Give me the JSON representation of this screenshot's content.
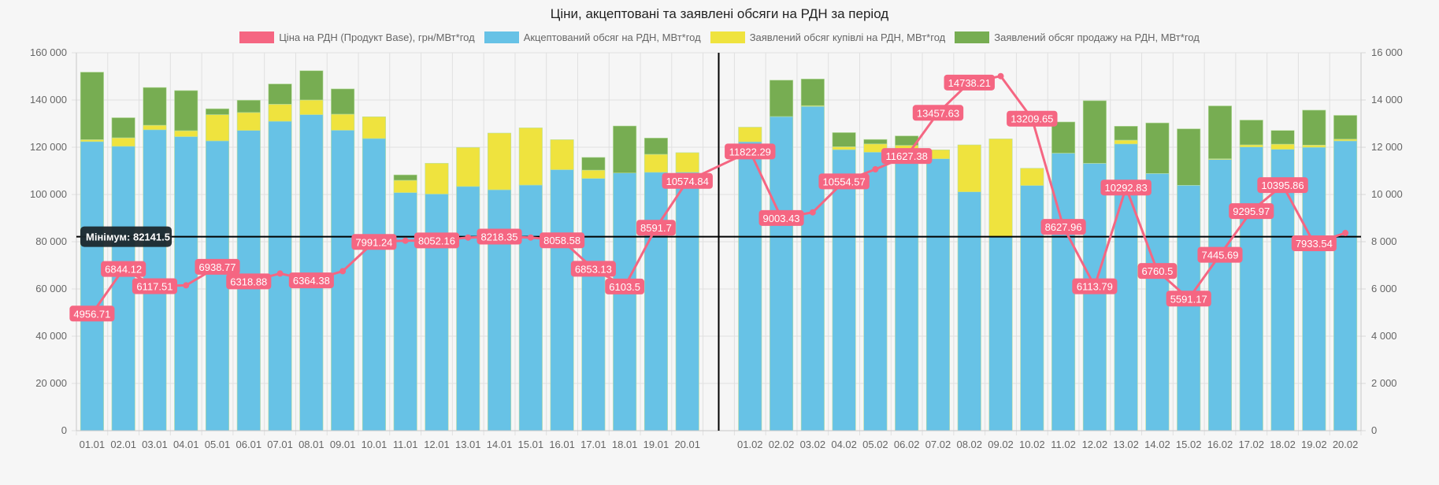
{
  "chart_data": {
    "type": "bar",
    "title": "Ціни, акцептовані та заявлені обсяги на РДН за період",
    "xlabel": "",
    "ylabel_left": "",
    "ylabel_right": "",
    "categories": [
      "01.01",
      "02.01",
      "03.01",
      "04.01",
      "05.01",
      "06.01",
      "07.01",
      "08.01",
      "09.01",
      "10.01",
      "11.01",
      "12.01",
      "13.01",
      "14.01",
      "15.01",
      "16.01",
      "17.01",
      "18.01",
      "19.01",
      "20.01",
      "",
      "01.02",
      "02.02",
      "03.02",
      "04.02",
      "05.02",
      "06.02",
      "07.02",
      "08.02",
      "09.02",
      "10.02",
      "11.02",
      "12.02",
      "13.02",
      "14.02",
      "15.02",
      "16.02",
      "17.02",
      "18.02",
      "19.02",
      "20.02"
    ],
    "y_left": {
      "min": 0,
      "max": 160000,
      "step": 20000,
      "ticks": [
        "0",
        "20 000",
        "40 000",
        "60 000",
        "80 000",
        "100 000",
        "120 000",
        "140 000",
        "160 000"
      ]
    },
    "y_right": {
      "min": 0,
      "max": 16000,
      "step": 2000,
      "ticks": [
        "0",
        "2 000",
        "4 000",
        "6 000",
        "8 000",
        "10 000",
        "12 000",
        "14 000",
        "16 000"
      ]
    },
    "grid": true,
    "legend_position": "top",
    "series": [
      {
        "name": "Ціна на РДН (Продукт Base), грн/МВт*год",
        "type": "line",
        "axis": "right",
        "color": "#f56682",
        "values": [
          4956.71,
          6844.12,
          6117.51,
          6153,
          6938.77,
          6318.88,
          6653,
          6364.38,
          6753,
          7991.24,
          8043,
          8052.16,
          8177,
          8218.35,
          8177,
          8058.58,
          6853.13,
          6103.5,
          8591.7,
          10574.84,
          null,
          11822.29,
          9003.43,
          9243,
          10554.57,
          11067,
          11627.38,
          13457.63,
          14738.21,
          15010,
          13209.65,
          8627.96,
          6113.79,
          10292.83,
          6760.5,
          5591.17,
          7445.69,
          9295.97,
          10395.86,
          7933.54,
          8370
        ],
        "labels": [
          "4956.71",
          "6844.12",
          "6117.51",
          "",
          "6938.77",
          "6318.88",
          "",
          "6364.38",
          "",
          "7991.24",
          "",
          "8052.16",
          "",
          "8218.35",
          "",
          "8058.58",
          "6853.13",
          "6103.5",
          "8591.7",
          "10574.84",
          "",
          "11822.29",
          "9003.43",
          "",
          "10554.57",
          "",
          "11627.38",
          "13457.63",
          "14738.21",
          "",
          "13209.65",
          "8627.96",
          "6113.79",
          "10292.83",
          "6760.5",
          "5591.17",
          "7445.69",
          "9295.97",
          "10395.86",
          "7933.54",
          ""
        ]
      },
      {
        "name": "Акцептований обсяг на РДН, МВт*год",
        "type": "bar",
        "stack": "volume",
        "axis": "left",
        "color": "#67c2e6",
        "values": [
          122400,
          120400,
          127400,
          124500,
          122700,
          127100,
          131000,
          133800,
          127200,
          123700,
          100800,
          100200,
          103400,
          102000,
          104000,
          110500,
          106800,
          109100,
          109400,
          109400,
          null,
          122300,
          133000,
          137300,
          119000,
          117900,
          119300,
          115100,
          101100,
          82141.5,
          103800,
          117500,
          113200,
          121400,
          108900,
          103900,
          114800,
          120100,
          119100,
          120000,
          122700
        ]
      },
      {
        "name": "Заявлений обсяг купівлі на РДН, МВт*год",
        "type": "bar",
        "stack": "volume",
        "axis": "left",
        "color": "#efe33e",
        "values": [
          800,
          3600,
          1900,
          2500,
          11100,
          7600,
          7200,
          6200,
          6800,
          9200,
          5200,
          13000,
          16500,
          24000,
          24200,
          12700,
          3500,
          0,
          7600,
          8300,
          null,
          6200,
          0,
          300,
          1200,
          3500,
          1500,
          3800,
          19900,
          41400,
          7300,
          0,
          0,
          1600,
          0,
          0,
          300,
          900,
          2200,
          900,
          700
        ]
      },
      {
        "name": "Заявлений обсяг продажу на РДН, МВт*год",
        "type": "bar",
        "stack": "volume",
        "axis": "left",
        "color": "#77ad52",
        "values": [
          28600,
          8500,
          16000,
          17000,
          2500,
          5200,
          8600,
          12400,
          10700,
          0,
          2300,
          0,
          0,
          0,
          0,
          0,
          5400,
          19900,
          6900,
          0,
          null,
          0,
          15400,
          11300,
          6000,
          1900,
          4000,
          0,
          0,
          0,
          0,
          13200,
          26500,
          5900,
          21400,
          23900,
          22400,
          10500,
          5800,
          14800,
          10100
        ]
      }
    ],
    "annotations": {
      "min_line": {
        "value": 82141.5,
        "axis": "left",
        "label": "Мінімум: 82141.5",
        "color": "#000000"
      },
      "divider_line": {
        "category_index": 20,
        "color": "#000000"
      }
    }
  }
}
